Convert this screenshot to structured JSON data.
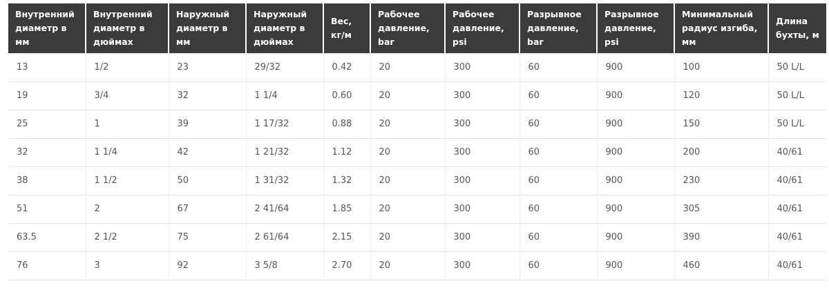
{
  "table": {
    "header": [
      "Внутренний диаметр в мм",
      "Внутренний диаметр в дюймах",
      "Наружный диаметр в мм",
      "Наружный диаметр в дюймах",
      "Вес, кг/м",
      "Рабочее давление, bar",
      "Рабочее давление, psi",
      "Разрывное давление, bar",
      "Разрывное давление, psi",
      "Минимальный радиус изгиба, мм",
      "Длина бухты, м"
    ],
    "rows": [
      [
        "13",
        "1/2",
        "23",
        "29/32",
        "0.42",
        "20",
        "300",
        "60",
        "900",
        "100",
        "50 L/L"
      ],
      [
        "19",
        "3/4",
        "32",
        "1 1/4",
        "0.60",
        "20",
        "300",
        "60",
        "900",
        "120",
        "50 L/L"
      ],
      [
        "25",
        "1",
        "39",
        "1 17/32",
        "0.88",
        "20",
        "300",
        "60",
        "900",
        "150",
        "50 L/L"
      ],
      [
        "32",
        "1 1/4",
        "42",
        "1 21/32",
        "1.12",
        "20",
        "300",
        "60",
        "900",
        "200",
        "40/61"
      ],
      [
        "38",
        "1 1/2",
        "50",
        "1 31/32",
        "1.32",
        "20",
        "300",
        "60",
        "900",
        "230",
        "40/61"
      ],
      [
        "51",
        "2",
        "67",
        "2 41/64",
        "1.85",
        "20",
        "300",
        "60",
        "900",
        "305",
        "40/61"
      ],
      [
        "63.5",
        "2 1/2",
        "75",
        "2 61/64",
        "2.15",
        "20",
        "300",
        "60",
        "900",
        "390",
        "40/61"
      ],
      [
        "76",
        "3",
        "92",
        "3 5/8",
        "2.70",
        "20",
        "300",
        "60",
        "900",
        "460",
        "40/61"
      ]
    ]
  }
}
